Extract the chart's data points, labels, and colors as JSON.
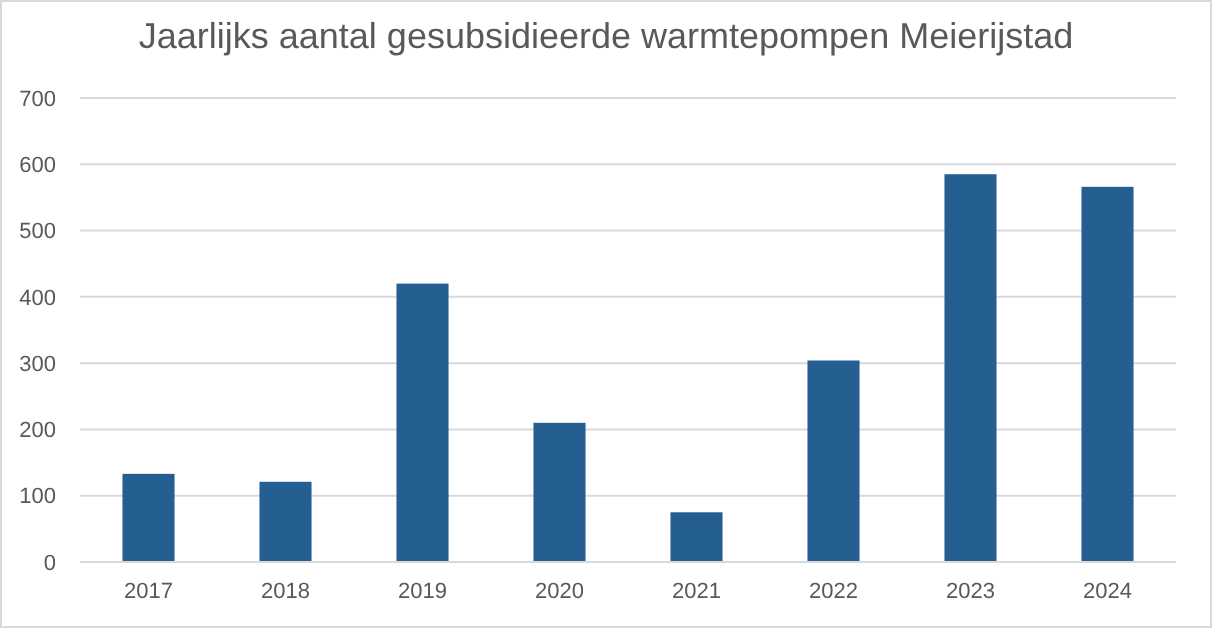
{
  "chart_data": {
    "type": "bar",
    "title": "Jaarlijks aantal gesubsidieerde warmtepompen  Meierijstad",
    "categories": [
      "2017",
      "2018",
      "2019",
      "2020",
      "2021",
      "2022",
      "2023",
      "2024"
    ],
    "values": [
      133,
      121,
      420,
      210,
      75,
      304,
      585,
      566
    ],
    "color": "#255e91",
    "ylim": [
      0,
      700
    ],
    "yticks": [
      0,
      100,
      200,
      300,
      400,
      500,
      600,
      700
    ],
    "grid": "y"
  }
}
